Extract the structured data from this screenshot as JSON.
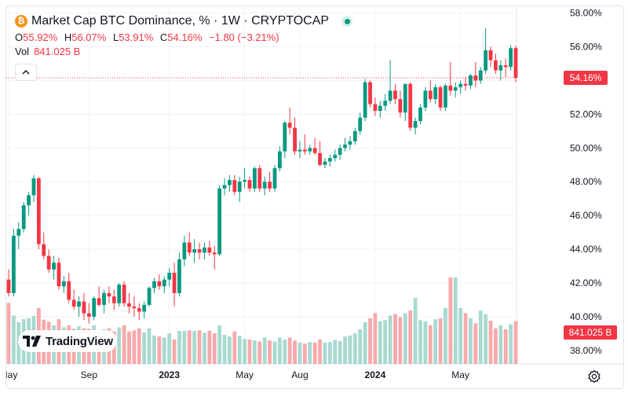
{
  "header": {
    "title": "Market Cap BTC Dominance, % · 1W · CRYPTOCAP",
    "coin_glyph": "₿",
    "ohlc": {
      "o_label": "O",
      "o_value": "55.92%",
      "h_label": "H",
      "h_value": "56.07%",
      "l_label": "L",
      "l_value": "53.91%",
      "c_label": "C",
      "c_value": "54.16%",
      "change": "−1.80 (−3.21%)"
    },
    "vol_label": "Vol",
    "vol_value": "841.025 B"
  },
  "watermark": "TradingView",
  "colors": {
    "up": "#089981",
    "down": "#f23645",
    "up_vol": "#a8d9d1",
    "down_vol": "#f7a9ab",
    "grid": "#f0f3fa"
  },
  "chart_data": {
    "type": "candlestick",
    "interval": "1W",
    "y_axis": {
      "min": 37.2,
      "max": 58.4,
      "ticks": [
        "58.00%",
        "56.00%",
        "54.00%",
        "52.00%",
        "50.00%",
        "48.00%",
        "46.00%",
        "44.00%",
        "42.00%",
        "40.00%",
        "38.00%"
      ],
      "tick_values": [
        58,
        56,
        54,
        52,
        50,
        48,
        46,
        44,
        42,
        40,
        38
      ]
    },
    "x_axis": {
      "labels": [
        "May",
        "Sep",
        "2023",
        "May",
        "Aug",
        "2024",
        "May"
      ],
      "label_index": [
        0,
        16,
        32,
        47,
        58,
        73,
        90
      ]
    },
    "last_price_label": "54.16%",
    "last_price": 54.16,
    "last_volume_label": "841.025 B",
    "volume_max_B": 1700,
    "candles": [
      [
        42.2,
        42.8,
        41.2,
        41.4,
        1200
      ],
      [
        41.4,
        45.2,
        41.2,
        44.8,
        950
      ],
      [
        44.8,
        45.6,
        44.0,
        45.2,
        820
      ],
      [
        45.2,
        46.8,
        45.0,
        46.6,
        880
      ],
      [
        46.6,
        47.4,
        46.0,
        47.2,
        900
      ],
      [
        47.2,
        48.4,
        46.8,
        48.2,
        940
      ],
      [
        48.2,
        48.3,
        44.0,
        44.3,
        1100
      ],
      [
        44.3,
        45.0,
        43.4,
        43.6,
        870
      ],
      [
        43.6,
        44.0,
        42.6,
        42.8,
        830
      ],
      [
        42.8,
        43.6,
        42.2,
        43.2,
        760
      ],
      [
        43.2,
        43.5,
        41.6,
        41.8,
        880
      ],
      [
        41.8,
        42.4,
        41.4,
        42.1,
        720
      ],
      [
        42.1,
        42.6,
        40.8,
        41.0,
        760
      ],
      [
        41.0,
        41.6,
        40.4,
        40.6,
        690
      ],
      [
        40.6,
        41.2,
        40.0,
        40.9,
        740
      ],
      [
        40.9,
        41.4,
        39.8,
        40.2,
        700
      ],
      [
        40.2,
        40.8,
        39.6,
        40.0,
        690
      ],
      [
        40.0,
        41.2,
        39.8,
        41.1,
        760
      ],
      [
        41.1,
        41.8,
        40.6,
        40.7,
        640
      ],
      [
        40.7,
        41.6,
        40.2,
        41.4,
        680
      ],
      [
        41.4,
        41.8,
        40.8,
        41.2,
        700
      ],
      [
        41.2,
        41.6,
        40.4,
        40.8,
        640
      ],
      [
        40.8,
        42.0,
        40.6,
        41.9,
        720
      ],
      [
        41.9,
        42.1,
        40.6,
        40.8,
        760
      ],
      [
        40.8,
        41.4,
        40.2,
        40.6,
        640
      ],
      [
        40.6,
        41.2,
        40.0,
        40.5,
        660
      ],
      [
        40.5,
        40.8,
        39.8,
        40.3,
        700
      ],
      [
        40.3,
        40.9,
        39.9,
        40.7,
        620
      ],
      [
        40.7,
        41.8,
        40.6,
        41.7,
        700
      ],
      [
        41.7,
        42.3,
        41.4,
        42.1,
        560
      ],
      [
        42.1,
        42.5,
        41.6,
        41.8,
        540
      ],
      [
        41.8,
        42.4,
        41.4,
        42.2,
        520
      ],
      [
        42.2,
        42.9,
        41.8,
        42.6,
        600
      ],
      [
        42.6,
        43.2,
        40.6,
        41.4,
        480
      ],
      [
        41.4,
        43.8,
        41.2,
        43.4,
        650
      ],
      [
        43.4,
        44.8,
        43.0,
        44.4,
        650
      ],
      [
        44.4,
        45.0,
        43.6,
        43.8,
        660
      ],
      [
        43.8,
        44.6,
        43.2,
        44.0,
        650
      ],
      [
        44.0,
        44.4,
        43.4,
        43.8,
        660
      ],
      [
        43.8,
        44.4,
        43.4,
        44.1,
        610
      ],
      [
        44.1,
        44.5,
        43.6,
        43.8,
        650
      ],
      [
        43.8,
        44.2,
        42.8,
        43.7,
        600
      ],
      [
        43.7,
        47.8,
        43.6,
        47.6,
        760
      ],
      [
        47.6,
        48.2,
        47.2,
        47.8,
        570
      ],
      [
        47.8,
        48.4,
        47.4,
        48.1,
        540
      ],
      [
        48.1,
        48.4,
        47.2,
        47.4,
        640
      ],
      [
        47.4,
        48.3,
        46.8,
        48.0,
        550
      ],
      [
        48.0,
        48.8,
        47.6,
        48.1,
        490
      ],
      [
        48.1,
        48.3,
        47.4,
        47.6,
        480
      ],
      [
        47.6,
        48.9,
        47.4,
        48.8,
        460
      ],
      [
        48.8,
        49.0,
        47.4,
        47.6,
        440
      ],
      [
        47.6,
        48.3,
        47.2,
        48.0,
        520
      ],
      [
        48.0,
        48.6,
        47.4,
        47.6,
        460
      ],
      [
        47.6,
        49.0,
        47.4,
        48.8,
        440
      ],
      [
        48.8,
        50.1,
        48.6,
        49.8,
        520
      ],
      [
        49.8,
        51.6,
        49.4,
        51.5,
        480
      ],
      [
        51.5,
        52.4,
        50.8,
        51.2,
        520
      ],
      [
        51.2,
        51.8,
        49.6,
        49.8,
        460
      ],
      [
        49.8,
        50.4,
        49.4,
        49.9,
        420
      ],
      [
        49.9,
        50.8,
        49.6,
        49.8,
        400
      ],
      [
        49.8,
        50.2,
        49.6,
        50.0,
        430
      ],
      [
        50.0,
        50.6,
        49.6,
        49.7,
        420
      ],
      [
        49.7,
        50.4,
        48.9,
        49.0,
        480
      ],
      [
        49.0,
        49.4,
        48.8,
        49.2,
        420
      ],
      [
        49.2,
        49.6,
        48.9,
        49.4,
        430
      ],
      [
        49.4,
        49.9,
        49.2,
        49.6,
        470
      ],
      [
        49.6,
        50.2,
        49.3,
        50.0,
        450
      ],
      [
        50.0,
        50.6,
        49.8,
        50.2,
        540
      ],
      [
        50.2,
        50.7,
        49.9,
        50.4,
        560
      ],
      [
        50.4,
        51.2,
        50.2,
        51.0,
        600
      ],
      [
        51.0,
        52.1,
        50.8,
        51.8,
        680
      ],
      [
        51.8,
        54.1,
        51.6,
        53.9,
        820
      ],
      [
        53.9,
        54.0,
        52.4,
        52.6,
        900
      ],
      [
        52.6,
        53.0,
        51.9,
        52.2,
        1000
      ],
      [
        52.2,
        52.8,
        51.8,
        52.5,
        840
      ],
      [
        52.5,
        53.2,
        52.2,
        52.8,
        860
      ],
      [
        52.8,
        55.2,
        52.6,
        53.4,
        950
      ],
      [
        53.4,
        53.8,
        52.6,
        52.9,
        980
      ],
      [
        52.9,
        53.4,
        51.8,
        52.1,
        920
      ],
      [
        52.1,
        53.8,
        51.6,
        53.8,
        1000
      ],
      [
        53.8,
        53.9,
        51.0,
        51.2,
        1050
      ],
      [
        51.2,
        51.8,
        50.8,
        51.6,
        1300
      ],
      [
        51.6,
        52.6,
        51.4,
        52.4,
        860
      ],
      [
        52.4,
        53.6,
        52.2,
        53.4,
        840
      ],
      [
        53.4,
        54.0,
        52.7,
        52.9,
        760
      ],
      [
        52.9,
        53.8,
        52.6,
        53.6,
        880
      ],
      [
        53.6,
        53.7,
        52.2,
        52.4,
        900
      ],
      [
        52.4,
        53.8,
        52.2,
        53.7,
        1100
      ],
      [
        53.7,
        55.1,
        53.1,
        53.4,
        1700
      ],
      [
        53.4,
        53.9,
        53.0,
        53.6,
        1700
      ],
      [
        53.6,
        54.0,
        53.2,
        53.8,
        1100
      ],
      [
        53.8,
        54.2,
        53.4,
        53.7,
        1000
      ],
      [
        53.7,
        54.4,
        53.5,
        54.3,
        900
      ],
      [
        54.3,
        55.1,
        53.6,
        54.0,
        800
      ],
      [
        54.0,
        54.8,
        53.8,
        54.6,
        1050
      ],
      [
        54.6,
        57.1,
        54.4,
        55.8,
        980
      ],
      [
        55.8,
        56.0,
        54.8,
        55.2,
        850
      ],
      [
        55.2,
        55.6,
        54.4,
        54.6,
        700
      ],
      [
        54.6,
        55.2,
        54.0,
        54.9,
        760
      ],
      [
        54.9,
        55.3,
        54.2,
        54.8,
        680
      ],
      [
        54.8,
        56.1,
        54.6,
        55.92,
        780
      ],
      [
        55.92,
        56.07,
        53.91,
        54.16,
        841
      ]
    ]
  }
}
